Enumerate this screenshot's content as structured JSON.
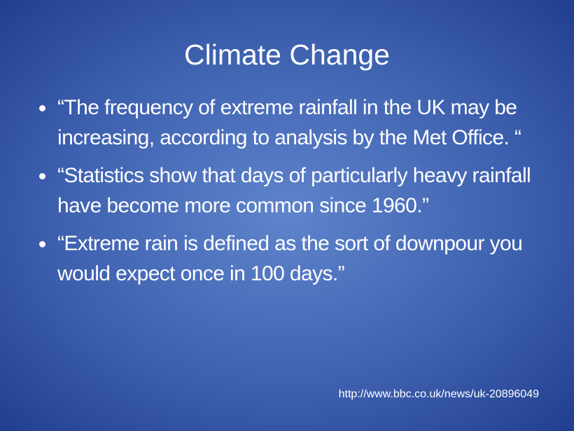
{
  "slide": {
    "title": "Climate Change",
    "bullets": [
      "“The frequency of extreme rainfall in the UK may be increasing, according to analysis by the Met Office. “",
      "“Statistics show that days of particularly heavy rainfall have become more common since 1960.”",
      "“Extreme rain is defined as the sort of downpour you would expect once in 100 days.”"
    ],
    "source": "http://www.bbc.co.uk/news/uk-20896049"
  }
}
